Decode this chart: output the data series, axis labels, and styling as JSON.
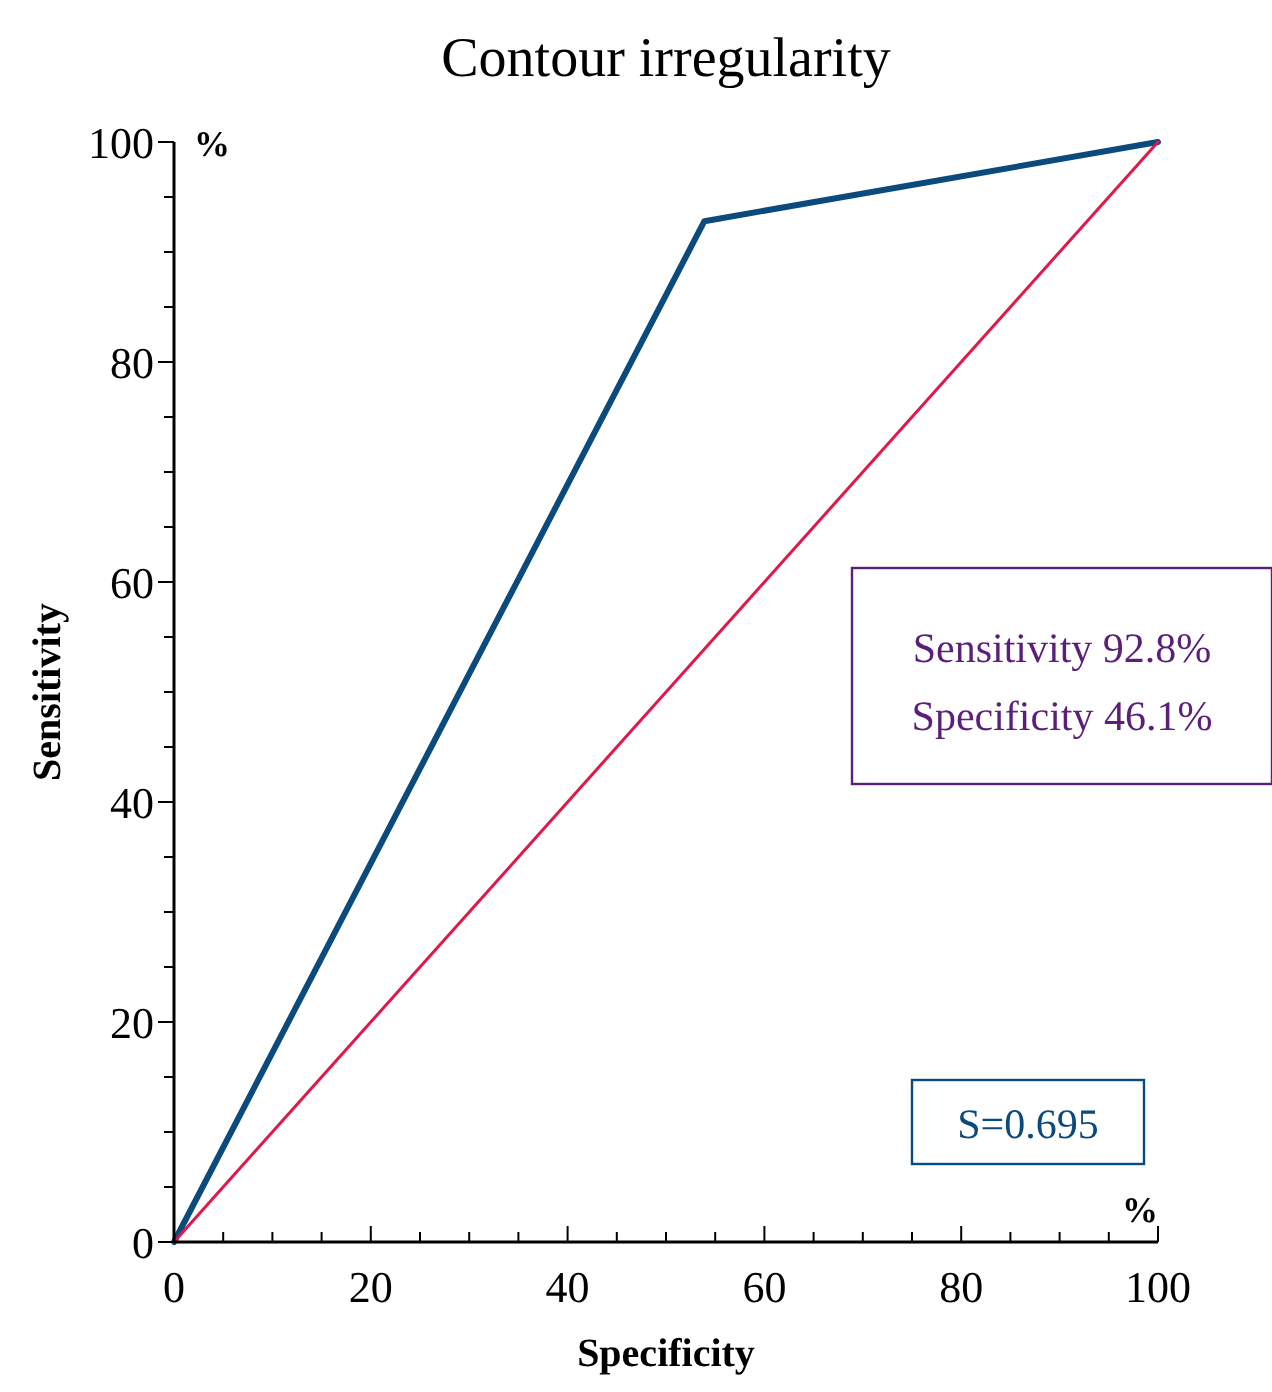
{
  "chart_data": {
    "type": "line",
    "title": "Contour irregularity",
    "xlabel": "Specificity",
    "ylabel": "Sensitivity",
    "x": [
      0,
      53.9,
      100
    ],
    "series": [
      {
        "color": "#0b4a7d",
        "values": [
          0,
          92.8,
          100
        ]
      },
      {
        "color": "#e0194a",
        "x": [
          0,
          100
        ],
        "values": [
          0,
          100
        ]
      }
    ],
    "xlim": [
      0,
      100
    ],
    "ylim": [
      0,
      100
    ],
    "xticks": [
      0,
      {
        "value": 5,
        "label": null
      },
      {
        "value": 10,
        "label": null
      },
      {
        "value": 15,
        "label": null
      },
      20,
      {
        "value": 25,
        "label": null
      },
      {
        "value": 30,
        "label": null
      },
      {
        "value": 35,
        "label": null
      },
      40,
      {
        "value": 45,
        "label": null
      },
      {
        "value": 50,
        "label": null
      },
      {
        "value": 55,
        "label": null
      },
      60,
      {
        "value": 65,
        "label": null
      },
      {
        "value": 70,
        "label": null
      },
      {
        "value": 75,
        "label": null
      },
      80,
      {
        "value": 85,
        "label": null
      },
      {
        "value": 90,
        "label": null
      },
      {
        "value": 95,
        "label": null
      },
      100
    ],
    "yticks": [
      0,
      {
        "value": 5,
        "label": null
      },
      {
        "value": 10,
        "label": null
      },
      {
        "value": 15,
        "label": null
      },
      20,
      {
        "value": 25,
        "label": null
      },
      {
        "value": 30,
        "label": null
      },
      {
        "value": 35,
        "label": null
      },
      40,
      {
        "value": 45,
        "label": null
      },
      {
        "value": 50,
        "label": null
      },
      {
        "value": 55,
        "label": null
      },
      60,
      {
        "value": 65,
        "label": null
      },
      {
        "value": 70,
        "label": null
      },
      {
        "value": 75,
        "label": null
      },
      80,
      {
        "value": 85,
        "label": null
      },
      {
        "value": 90,
        "label": null
      },
      {
        "value": 95,
        "label": null
      },
      100
    ],
    "annotations": [
      "%",
      "%",
      "Sensitivity 92.8%",
      "Specificity 46.1%",
      "S=0.695"
    ],
    "grid": false,
    "marker": "none",
    "line_style": "solid"
  }
}
